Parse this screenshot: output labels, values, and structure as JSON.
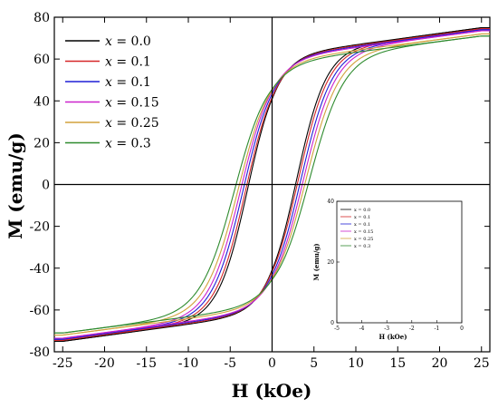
{
  "chart_data": [
    {
      "type": "line",
      "xlabel": "H (kOe)",
      "ylabel": "M (emu/g)",
      "xlim": [
        -26,
        26
      ],
      "ylim": [
        -80,
        80
      ],
      "xticks": [
        -25,
        -20,
        -15,
        -10,
        -5,
        0,
        5,
        10,
        15,
        20,
        25
      ],
      "yticks": [
        -80,
        -60,
        -40,
        -20,
        0,
        20,
        40,
        60,
        80
      ],
      "grid": false,
      "legend": "top-left",
      "series": [
        {
          "name": "x = 0.0",
          "color": "#000000",
          "hc": 2.8,
          "ms": 75,
          "mr": 36,
          "hs": 3.5
        },
        {
          "name": "x = 0.1",
          "color": "#d62728",
          "hc": 3.0,
          "ms": 74.5,
          "mr": 35,
          "hs": 3.6
        },
        {
          "name": "x = 0.1",
          "color": "#1f1fd6",
          "hc": 3.3,
          "ms": 74,
          "mr": 35,
          "hs": 3.7
        },
        {
          "name": "x = 0.15",
          "color": "#cc22cc",
          "hc": 3.6,
          "ms": 73.5,
          "mr": 34,
          "hs": 3.8
        },
        {
          "name": "x = 0.25",
          "color": "#d2a23c",
          "hc": 3.9,
          "ms": 72,
          "mr": 33,
          "hs": 3.9
        },
        {
          "name": "x = 0.3",
          "color": "#2e8b2e",
          "hc": 4.3,
          "ms": 71,
          "mr": 32,
          "hs": 4.1
        }
      ]
    },
    {
      "type": "line",
      "xlabel": "H (kOe)",
      "ylabel": "M (emu/g)",
      "xlim": [
        -5,
        0
      ],
      "ylim": [
        0,
        40
      ],
      "xticks": [
        -5,
        -4,
        -3,
        -2,
        -1,
        0
      ],
      "yticks": [
        0,
        20,
        40
      ],
      "grid": false,
      "legend": "top-left",
      "series_ref": "same as main plot, zoom of lower-left loop branch"
    }
  ],
  "legend": {
    "items": [
      {
        "prefix": "x",
        "label": " = 0.0"
      },
      {
        "prefix": "x",
        "label": " = 0.1"
      },
      {
        "prefix": "x",
        "label": " = 0.1"
      },
      {
        "prefix": "x",
        "label": " = 0.15"
      },
      {
        "prefix": "x",
        "label": " = 0.25"
      },
      {
        "prefix": "x",
        "label": " = 0.3"
      }
    ]
  },
  "inset_legend": {
    "items": [
      "x = 0.0",
      "x = 0.1",
      "x = 0.1",
      "x = 0.15",
      "x = 0.25",
      "x = 0.3"
    ]
  },
  "labels": {
    "xlabel": "H (kOe)",
    "ylabel": "M (emu/g)",
    "inset_xlabel": "H (kOe)",
    "inset_ylabel": "M (emu/g)"
  }
}
